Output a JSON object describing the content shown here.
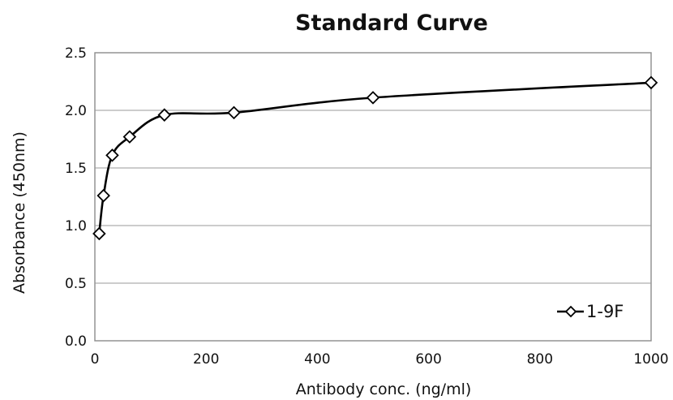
{
  "chart_data": {
    "type": "line",
    "title": "Standard Curve",
    "xlabel": "Antibody conc. (ng/ml)",
    "ylabel": "Absorbance (450nm)",
    "xlim": [
      0,
      1000
    ],
    "ylim": [
      0.0,
      2.5
    ],
    "x_ticks": [
      "0",
      "200",
      "400",
      "600",
      "800",
      "1000"
    ],
    "y_ticks": [
      "0.0",
      "0.5",
      "1.0",
      "1.5",
      "2.0",
      "2.5"
    ],
    "grid": "horizontal",
    "legend_position": "bottom-right",
    "series": [
      {
        "name": "1-9F",
        "marker": "diamond",
        "color": "#000000",
        "x": [
          7.8,
          15.6,
          31.25,
          62.5,
          125,
          250,
          500,
          1000
        ],
        "y": [
          0.93,
          1.26,
          1.61,
          1.77,
          1.96,
          1.98,
          2.11,
          2.24
        ]
      }
    ]
  }
}
